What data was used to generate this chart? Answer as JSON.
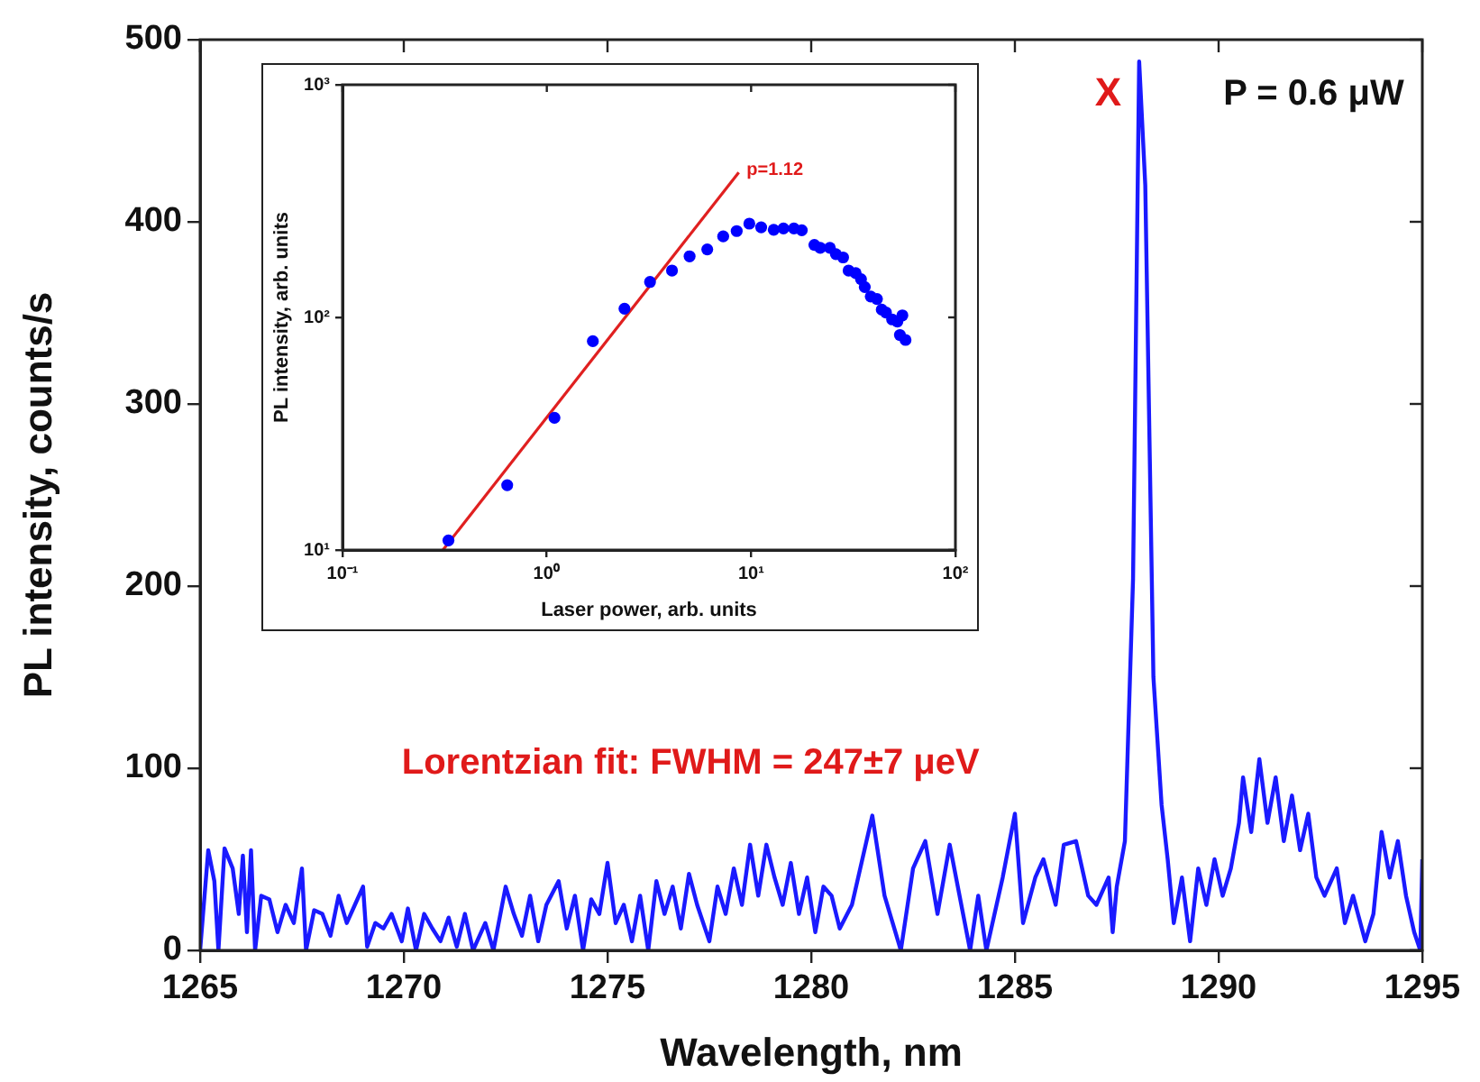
{
  "chart_data": [
    {
      "type": "line",
      "xlabel": "Wavelength, nm",
      "ylabel": "PL intensity, counts/s",
      "xlim": [
        1265,
        1295
      ],
      "xticks": [
        1265,
        1270,
        1275,
        1280,
        1285,
        1290,
        1295
      ],
      "ylim": [
        0,
        500
      ],
      "yticks": [
        0,
        100,
        200,
        300,
        400,
        500
      ],
      "grid": false,
      "legend": false,
      "line_style": "solid",
      "x": [
        1265.0,
        1265.2,
        1265.35,
        1265.45,
        1265.6,
        1265.8,
        1265.95,
        1266.05,
        1266.15,
        1266.25,
        1266.35,
        1266.5,
        1266.7,
        1266.9,
        1267.1,
        1267.3,
        1267.5,
        1267.6,
        1267.8,
        1268.0,
        1268.2,
        1268.4,
        1268.6,
        1268.8,
        1269.0,
        1269.1,
        1269.3,
        1269.5,
        1269.7,
        1269.95,
        1270.1,
        1270.3,
        1270.5,
        1270.7,
        1270.9,
        1271.1,
        1271.3,
        1271.5,
        1271.7,
        1272.0,
        1272.2,
        1272.5,
        1272.7,
        1272.9,
        1273.1,
        1273.3,
        1273.5,
        1273.8,
        1274.0,
        1274.2,
        1274.4,
        1274.6,
        1274.8,
        1275.0,
        1275.2,
        1275.4,
        1275.6,
        1275.8,
        1276.0,
        1276.2,
        1276.4,
        1276.6,
        1276.8,
        1277.0,
        1277.2,
        1277.5,
        1277.7,
        1277.9,
        1278.1,
        1278.3,
        1278.5,
        1278.7,
        1278.9,
        1279.1,
        1279.3,
        1279.5,
        1279.7,
        1279.9,
        1280.1,
        1280.3,
        1280.5,
        1280.7,
        1281.0,
        1281.5,
        1281.8,
        1282.2,
        1282.5,
        1282.8,
        1283.1,
        1283.4,
        1283.9,
        1284.1,
        1284.3,
        1284.7,
        1285.0,
        1285.2,
        1285.5,
        1285.7,
        1286.0,
        1286.2,
        1286.5,
        1286.8,
        1287.0,
        1287.3,
        1287.4,
        1287.5,
        1287.7,
        1287.9,
        1288.05,
        1288.2,
        1288.4,
        1288.5,
        1288.6,
        1288.75,
        1288.9,
        1289.1,
        1289.3,
        1289.5,
        1289.7,
        1289.9,
        1290.1,
        1290.3,
        1290.5,
        1290.6,
        1290.8,
        1291.0,
        1291.2,
        1291.4,
        1291.6,
        1291.8,
        1292.0,
        1292.2,
        1292.4,
        1292.6,
        1292.9,
        1293.1,
        1293.3,
        1293.6,
        1293.8,
        1294.0,
        1294.2,
        1294.4,
        1294.6,
        1294.8,
        1294.95,
        1295.0
      ],
      "series": [
        {
          "color": "#1a1aff",
          "values": [
            0,
            55,
            38,
            0,
            56,
            45,
            20,
            52,
            10,
            55,
            0,
            30,
            28,
            10,
            25,
            15,
            45,
            0,
            22,
            20,
            8,
            30,
            15,
            25,
            35,
            2,
            15,
            12,
            20,
            5,
            23,
            0,
            20,
            12,
            5,
            18,
            2,
            20,
            0,
            15,
            0,
            35,
            20,
            8,
            30,
            5,
            25,
            38,
            12,
            30,
            0,
            28,
            20,
            48,
            15,
            25,
            5,
            30,
            0,
            38,
            20,
            35,
            12,
            42,
            25,
            5,
            35,
            20,
            45,
            25,
            58,
            30,
            58,
            40,
            25,
            48,
            20,
            40,
            10,
            35,
            30,
            12,
            25,
            74,
            30,
            0,
            45,
            60,
            20,
            58,
            0,
            30,
            0,
            40,
            75,
            15,
            40,
            50,
            25,
            58,
            60,
            30,
            25,
            40,
            10,
            35,
            60,
            204,
            488,
            420,
            150,
            115,
            80,
            50,
            15,
            40,
            5,
            45,
            25,
            50,
            30,
            45,
            70,
            95,
            65,
            105,
            70,
            95,
            60,
            85,
            55,
            75,
            40,
            30,
            45,
            15,
            30,
            5,
            20,
            65,
            40,
            60,
            30,
            10,
            0,
            50
          ]
        }
      ],
      "annotations": [
        "P = 0.6 μW",
        "Lorentzian fit: FWHM = 247±7 μeV",
        "X"
      ]
    },
    {
      "type": "scatter",
      "xlabel": "Laser power, arb. units",
      "ylabel": "PL intensity, arb. units",
      "log": "xy",
      "xlim": [
        0.1,
        100
      ],
      "xticks": [
        {
          "value": 0.1,
          "label": "10⁻¹"
        },
        {
          "value": 1,
          "label": "10⁰"
        },
        {
          "value": 10,
          "label": "10¹"
        },
        {
          "value": 100,
          "label": "10²"
        }
      ],
      "ylim": [
        10,
        1000
      ],
      "yticks": [
        {
          "value": 10,
          "label": "10¹"
        },
        {
          "value": 100,
          "label": "10²"
        },
        {
          "value": 1000,
          "label": "10³"
        }
      ],
      "grid": false,
      "legend": false,
      "series": [
        {
          "color": "#0000ff",
          "marker": "circle",
          "x": [
            0.33,
            0.64,
            1.09,
            1.68,
            2.4,
            3.2,
            4.1,
            5.0,
            6.1,
            7.3,
            8.5,
            9.8,
            11.2,
            12.9,
            14.4,
            16.2,
            17.7,
            20.4,
            21.8,
            24.3,
            26,
            28.2,
            30,
            32.5,
            34.5,
            36,
            38.5,
            41.3,
            43.6,
            45.7,
            49,
            52,
            55,
            53.5,
            57
          ],
          "values": [
            11,
            19,
            37,
            79,
            109,
            142,
            159,
            183,
            196,
            223,
            235,
            253,
            244,
            238,
            241,
            241,
            237,
            205,
            199,
            199,
            187,
            181,
            159,
            155,
            146,
            135,
            123,
            120,
            108,
            105,
            98,
            96,
            102,
            84,
            80
          ]
        },
        {
          "type": "line",
          "color": "#e02020",
          "x": [
            0.31,
            8.7
          ],
          "values": [
            10,
            420
          ]
        }
      ],
      "annotations": [
        {
          "text": "p=1.12",
          "x": 9.5,
          "y": 430
        }
      ]
    }
  ]
}
